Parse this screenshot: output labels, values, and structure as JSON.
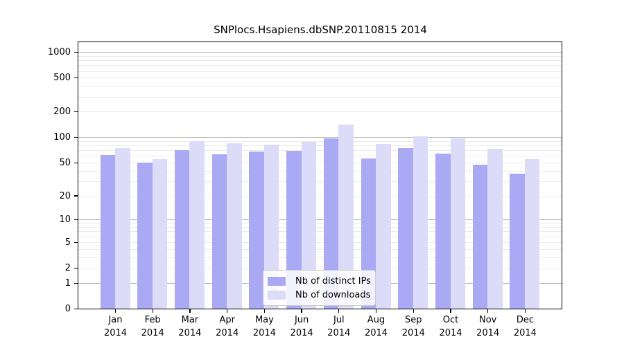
{
  "title": "SNPlocs.Hsapiens.dbSNP.20110815 2014",
  "legend": {
    "items": [
      {
        "label": "Nb of distinct IPs",
        "color": "#a9a9f4"
      },
      {
        "label": "Nb of downloads",
        "color": "#dcdcf9"
      }
    ]
  },
  "chart_data": {
    "type": "bar",
    "title": "SNPlocs.Hsapiens.dbSNP.20110815 2014",
    "categories": [
      "Jan",
      "Feb",
      "Mar",
      "Apr",
      "May",
      "Jun",
      "Jul",
      "Aug",
      "Sep",
      "Oct",
      "Nov",
      "Dec"
    ],
    "category_year_label": "2014",
    "series": [
      {
        "name": "Nb of distinct IPs",
        "color": "#a9a9f4",
        "values": [
          62,
          50,
          70,
          63,
          68,
          69,
          97,
          56,
          75,
          64,
          47,
          37
        ]
      },
      {
        "name": "Nb of downloads",
        "color": "#dcdcf9",
        "values": [
          74,
          55,
          89,
          85,
          82,
          88,
          140,
          84,
          102,
          97,
          73,
          55
        ]
      }
    ],
    "xlabel": "",
    "ylabel": "",
    "y_scale": "log10(value+1)",
    "ylim": [
      0,
      1300
    ],
    "y_ticks": [
      0,
      1,
      2,
      5,
      10,
      20,
      50,
      100,
      200,
      500,
      1000
    ],
    "grid": {
      "major_values": [
        1,
        10,
        100,
        1000
      ],
      "minor_values": [
        2,
        3,
        4,
        5,
        6,
        7,
        8,
        9,
        20,
        30,
        40,
        50,
        60,
        70,
        80,
        90,
        200,
        300,
        400,
        500,
        600,
        700,
        800,
        900
      ],
      "major_color": "#b4b4b4",
      "minor_color": "#ebebeb"
    },
    "legend_position": "lower center"
  }
}
